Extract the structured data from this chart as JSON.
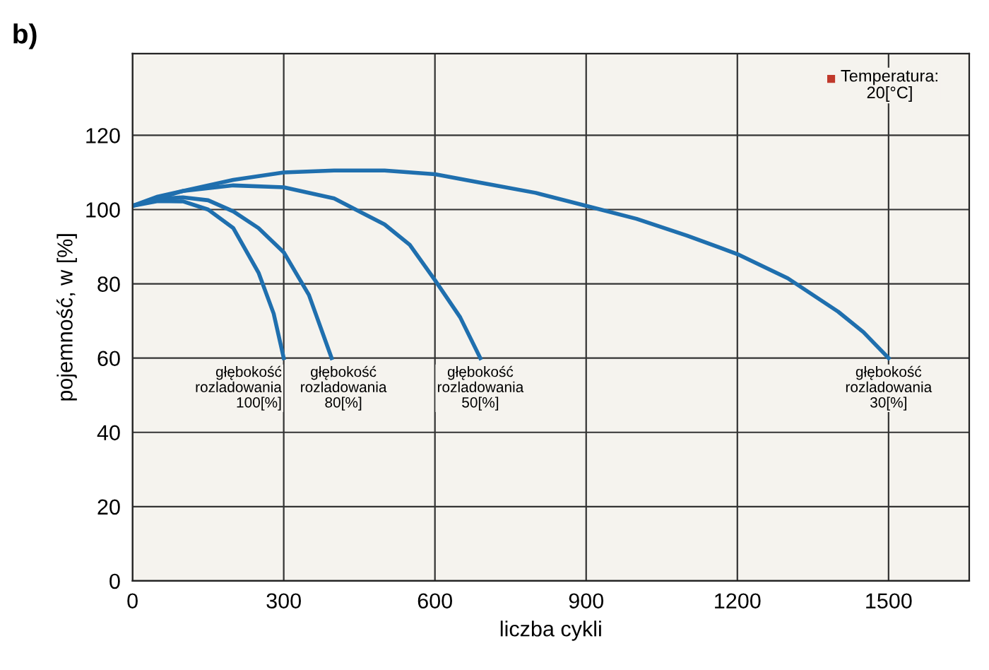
{
  "chart_data": {
    "type": "line",
    "title": "b)",
    "xlabel": "liczba cykli",
    "ylabel": "pojemność, w [%]",
    "series": [
      {
        "color": "#1f6fae",
        "x": [
          0,
          50,
          100,
          150,
          200,
          250,
          280,
          300
        ],
        "values": [
          101,
          102.3,
          102.2,
          100,
          95,
          83,
          72,
          60
        ]
      },
      {
        "color": "#1f6fae",
        "x": [
          0,
          50,
          100,
          150,
          200,
          250,
          300,
          350,
          395
        ],
        "values": [
          101,
          102.8,
          103.3,
          102.5,
          99.5,
          95,
          88.5,
          77,
          60
        ]
      },
      {
        "color": "#1f6fae",
        "x": [
          0,
          50,
          100,
          200,
          300,
          400,
          500,
          550,
          600,
          650,
          690
        ],
        "values": [
          101,
          103.5,
          105,
          106.5,
          106,
          103,
          96,
          90.5,
          81,
          71,
          60
        ]
      },
      {
        "color": "#1f6fae",
        "x": [
          0,
          100,
          200,
          300,
          400,
          500,
          600,
          700,
          800,
          900,
          1000,
          1100,
          1200,
          1300,
          1400,
          1450,
          1500
        ],
        "values": [
          101,
          105,
          108,
          110,
          110.5,
          110.5,
          109.5,
          107,
          104.5,
          101,
          97.5,
          93,
          88,
          81.5,
          72.5,
          67,
          60
        ]
      }
    ],
    "annotations": [
      {
        "text": "głębokość\nrozladowania\n100[%]",
        "x": 300,
        "y": 60
      },
      {
        "text": "głębokość\nrozladowania\n80[%]",
        "x": 395,
        "y": 60
      },
      {
        "text": "głębokość\nrozladowania\n50[%]",
        "x": 690,
        "y": 60
      },
      {
        "text": "głębokość\nrozladowania\n30[%]",
        "x": 1500,
        "y": 60
      },
      "Temperatura:\n20[°C]"
    ],
    "xlim": [
      0,
      1660
    ],
    "ylim": [
      0,
      142
    ],
    "xticks": [
      0,
      300,
      600,
      900,
      1200,
      1500
    ],
    "yticks": [
      0,
      20,
      40,
      60,
      80,
      100,
      120
    ],
    "grid": true,
    "legend": false,
    "marker": "none",
    "line_style": "solid"
  }
}
